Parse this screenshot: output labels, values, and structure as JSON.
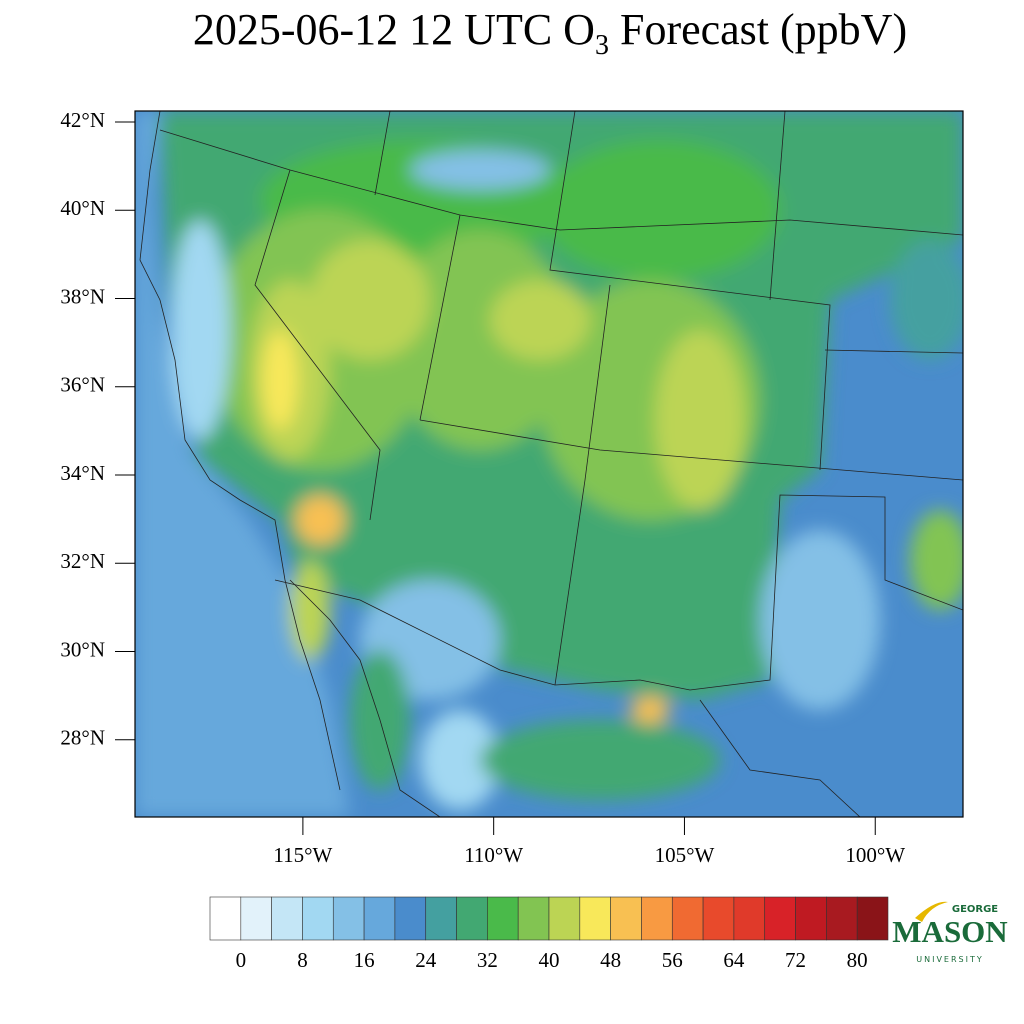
{
  "chart_data": {
    "type": "map",
    "title": {
      "main": "2025-06-12 12 UTC O",
      "subscript": "3",
      "rest": " Forecast (ppbV)"
    },
    "xlim": [
      -119.4,
      -97.7
    ],
    "xticks": [
      {
        "value": -115,
        "label": "115°W"
      },
      {
        "value": -110,
        "label": "110°W"
      },
      {
        "value": -105,
        "label": "105°W"
      },
      {
        "value": -100,
        "label": "100°W"
      }
    ],
    "ylim": [
      26.25,
      42.25
    ],
    "yticks": [
      {
        "value": 42,
        "label": "42°N"
      },
      {
        "value": 40,
        "label": "40°N"
      },
      {
        "value": 38,
        "label": "38°N"
      },
      {
        "value": 36,
        "label": "36°N"
      },
      {
        "value": 34,
        "label": "34°N"
      },
      {
        "value": 32,
        "label": "32°N"
      },
      {
        "value": 30,
        "label": "30°N"
      },
      {
        "value": 28,
        "label": "28°N"
      }
    ],
    "colorbar": {
      "colors": [
        "#ffffff",
        "#e2f2fa",
        "#c4e6f6",
        "#a2d8f2",
        "#84c0e6",
        "#66a8dc",
        "#4a8ccc",
        "#44a0a0",
        "#42a872",
        "#4aba4a",
        "#82c452",
        "#bcd454",
        "#f8e85a",
        "#f8c052",
        "#f89a42",
        "#f06a32",
        "#e84a2c",
        "#e03a2a",
        "#d82228",
        "#bf1a22",
        "#a81a20",
        "#8a1418"
      ],
      "levels": [
        0,
        4,
        8,
        12,
        16,
        20,
        24,
        28,
        32,
        36,
        40,
        44,
        48,
        52,
        56,
        60,
        64,
        68,
        72,
        76,
        80
      ],
      "ticks": [
        0,
        8,
        16,
        24,
        32,
        40,
        48,
        56,
        64,
        72,
        80
      ]
    }
  },
  "logo": {
    "top": "GEORGE",
    "name": "MASON",
    "bottom": "UNIVERSITY"
  }
}
